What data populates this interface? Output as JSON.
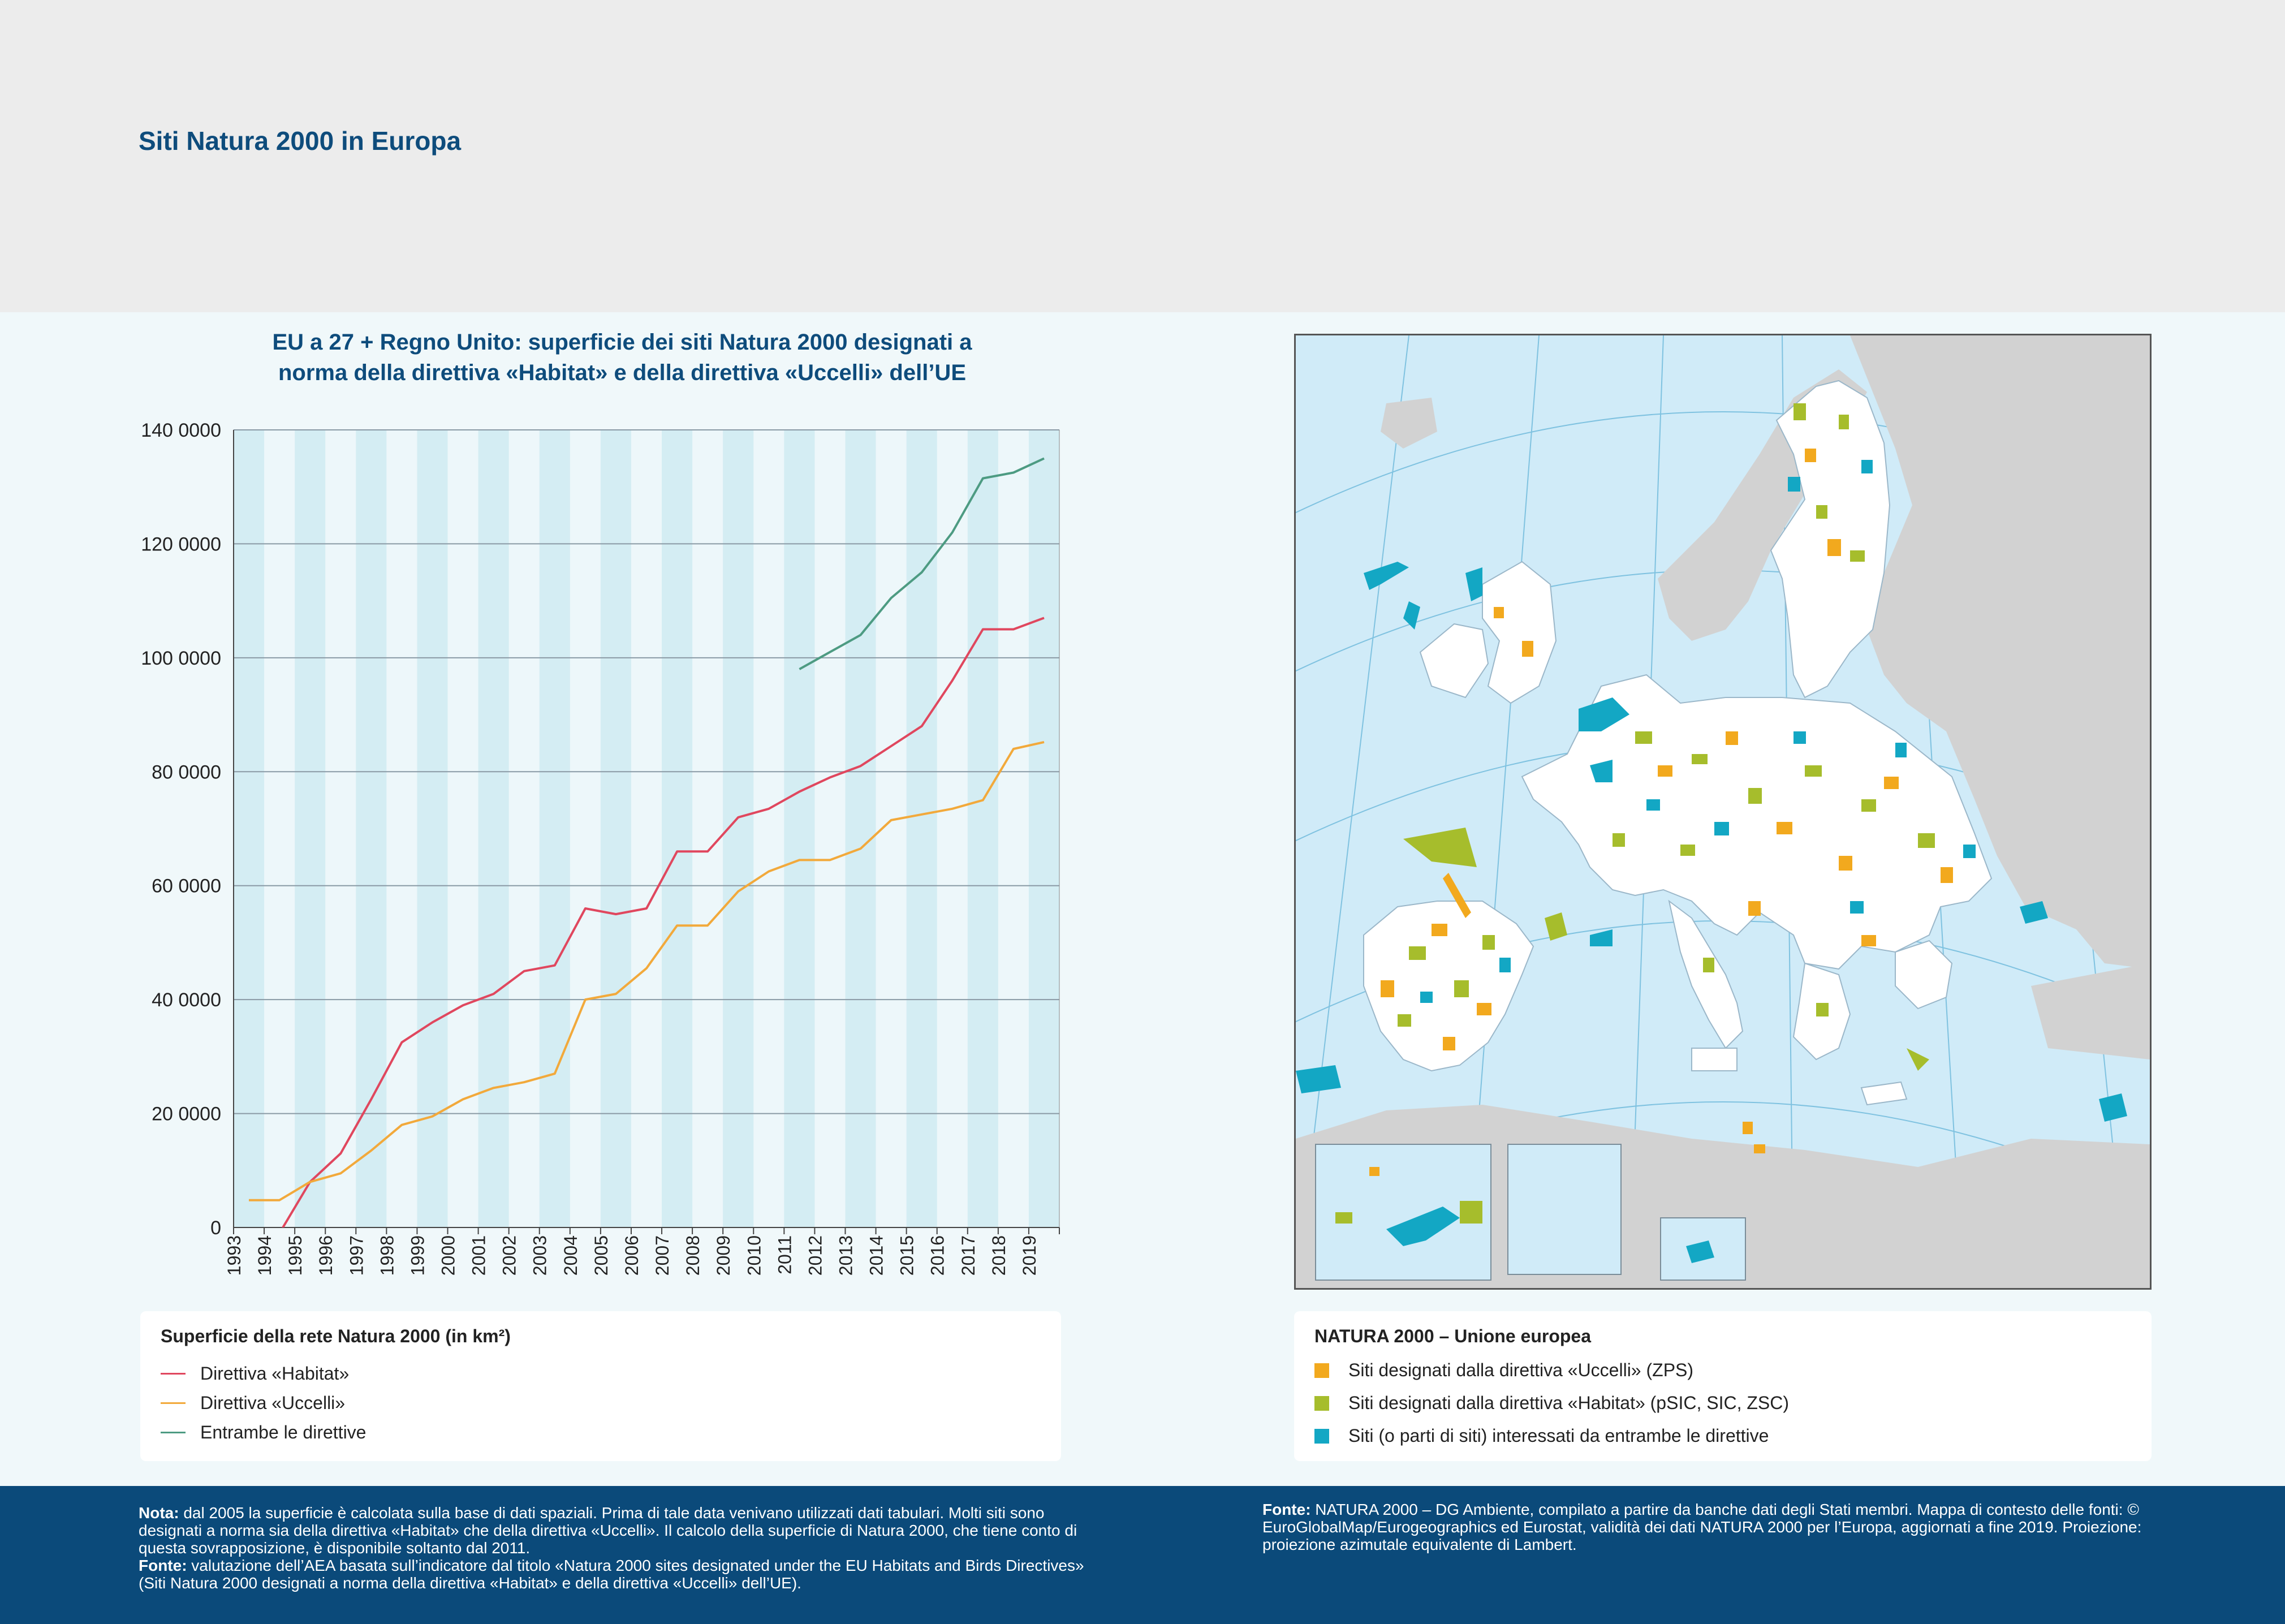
{
  "page": {
    "title": "Siti Natura 2000 in Europa"
  },
  "chart_title": {
    "line1": "EU a 27 + Regno Unito: superficie dei siti Natura 2000 designati a",
    "line2": "norma della direttiva «Habitat» e della direttiva «Uccelli» dell’UE"
  },
  "chart_data": {
    "type": "line",
    "x": [
      1993,
      1994,
      1995,
      1996,
      1997,
      1998,
      1999,
      2000,
      2001,
      2002,
      2003,
      2004,
      2005,
      2006,
      2007,
      2008,
      2009,
      2010,
      2011,
      2012,
      2013,
      2014,
      2015,
      2016,
      2017,
      2018,
      2019
    ],
    "y_ticks": [
      "0",
      "20 0000",
      "40 0000",
      "60 0000",
      "80 0000",
      "100 0000",
      "120 0000",
      "140 0000"
    ],
    "ylim": [
      0,
      1400000
    ],
    "grid": true,
    "series": [
      {
        "name": "Direttiva «Habitat»",
        "color": "#e0475e",
        "values": [
          null,
          -10000,
          80000,
          130000,
          225000,
          325000,
          360000,
          390000,
          410000,
          450000,
          460000,
          560000,
          550000,
          560000,
          660000,
          660000,
          720000,
          735000,
          765000,
          790000,
          810000,
          845000,
          880000,
          960000,
          1050000,
          1050000,
          1070000
        ]
      },
      {
        "name": "Direttiva «Uccelli»",
        "color": "#f2a93b",
        "values": [
          48000,
          48000,
          80000,
          95000,
          135000,
          180000,
          195000,
          225000,
          245000,
          255000,
          270000,
          400000,
          410000,
          455000,
          530000,
          530000,
          590000,
          625000,
          645000,
          645000,
          665000,
          715000,
          725000,
          735000,
          750000,
          840000,
          852000
        ]
      },
      {
        "name": "Entrambe le direttive",
        "color": "#4d9b82",
        "values": [
          null,
          null,
          null,
          null,
          null,
          null,
          null,
          null,
          null,
          null,
          null,
          null,
          null,
          null,
          null,
          null,
          null,
          null,
          980000,
          1010000,
          1040000,
          1105000,
          1150000,
          1220000,
          1315000,
          1325000,
          1350000
        ]
      }
    ]
  },
  "chart_legend": {
    "title": "Superficie della rete Natura 2000 (in km²)",
    "items": [
      "Direttiva «Habitat»",
      "Direttiva «Uccelli»",
      "Entrambe le direttive"
    ],
    "colors": [
      "#e0475e",
      "#f2a93b",
      "#4d9b82"
    ]
  },
  "map_legend": {
    "title": "NATURA 2000 – Unione europea",
    "items": [
      {
        "label": "Siti designati dalla direttiva «Uccelli» (ZPS)",
        "color": "#f2a91e"
      },
      {
        "label": "Siti designati dalla direttiva «Habitat» (pSIC, SIC, ZSC)",
        "color": "#a6bd2c"
      },
      {
        "label": "Siti (o parti di siti) interessati da entrambe le direttive",
        "color": "#13a7c4"
      }
    ]
  },
  "map": {
    "sea_color": "#d0ebf8",
    "land_color": "#d2d2d2",
    "eu_land_color": "#ffffff",
    "graticule_color": "#7fc2e0"
  },
  "footer": {
    "note_label": "Nota:",
    "note_text": " dal 2005 la superficie è calcolata sulla base di dati spaziali. Prima di tale data venivano utilizzati dati tabulari. Molti siti sono designati a norma sia della direttiva «Habitat» che della direttiva «Uccelli». Il calcolo della superficie di Natura 2000, che tiene conto di questa sovrapposizione, è disponibile soltanto dal 2011.",
    "source_label": "Fonte:",
    "source_text": " valutazione dell’AEA basata sull’indicatore dal titolo «Natura 2000 sites designated under the EU Habitats and Birds Directives» (Siti Natura 2000 designati a norma della direttiva «Habitat» e della direttiva «Uccelli» dell’UE).",
    "map_source_label": "Fonte:",
    "map_source_text": " NATURA 2000 – DG Ambiente, compilato a partire da banche dati degli Stati membri. Mappa di contesto delle fonti: © EuroGlobalMap/Eurogeographics ed Eurostat, validità dei dati NATURA 2000 per l’Europa, aggiornati a fine 2019. Proiezione: proiezione azimutale equivalente di Lambert."
  }
}
